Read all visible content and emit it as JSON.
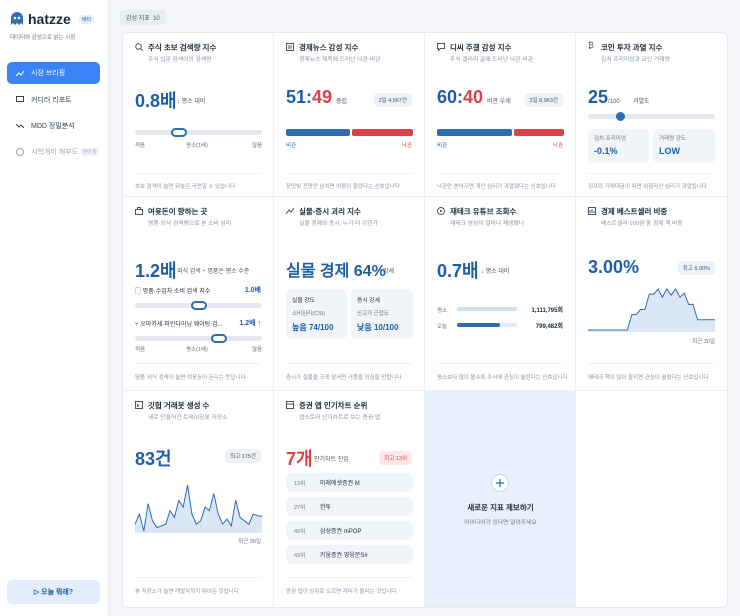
{
  "sidebar": {
    "logo": "hatzze",
    "badge": "베타",
    "tagline": "데이터와 감성으로 읽는 시장",
    "nav": [
      {
        "label": "시장 브리핑"
      },
      {
        "label": "커디러 리포트"
      },
      {
        "label": "MDD 정밀분석"
      },
      {
        "label": "서학개미 해부도",
        "badge": "준비 중"
      }
    ],
    "cta": "오늘 뭐래?"
  },
  "header": {
    "title": "감성 지표",
    "count": 10
  },
  "cards": [
    {
      "title": "주식 초보 검색량 지수",
      "subtitle": "주식 입문 검색어의 검색량",
      "value": "0.8배",
      "change": "↓ 평소 대비",
      "scale": [
        "적음",
        "평소(1배)",
        "많음"
      ],
      "footer": "초보 검색이 늘면 뒤늦은 국면일 수 있습니다"
    },
    {
      "title": "경제뉴스 감성 지수",
      "subtitle": "경제뉴스 제목에 드러난 낙관·비관",
      "ratio": {
        "left": 51,
        "sep": ":",
        "right": 49
      },
      "verdict": "중립",
      "count": "3일 4,567건",
      "bar_labels": [
        "비관",
        "낙관"
      ],
      "footer": "장밋빛 전망만 넘치면 여론이 들떴다는 신호입니다"
    },
    {
      "title": "디씨 주갤 감성 지수",
      "subtitle": "주식 갤러리 글에 드러난 낙관·비관",
      "ratio": {
        "left": 60,
        "sep": ":",
        "right": 40
      },
      "verdict": "비관 우세",
      "count": "3일 8,963건",
      "bar_labels": [
        "비관",
        "낙관"
      ],
      "footer": "낙관만 쏟아지면 개인 심리가 과열됐다는 신호입니다"
    },
    {
      "title": "코인 투자 과열 지수",
      "subtitle": "김치 프리미엄과 코인 거래량",
      "score": 25,
      "scale": "/100",
      "label": "과열도",
      "stats": [
        {
          "label": "김치 프리미엄",
          "value": "-0.1%"
        },
        {
          "label": "거래량 강도",
          "value": "LOW"
        }
      ],
      "footer": "김프와 거래대금이 뛰면 위험자산 심리가 과열됩니다"
    },
    {
      "title": "여윳돈이 향하는 곳",
      "subtitle": "명품·외식 검색량으로 본 소비 심리",
      "value": "1.2배",
      "note": "외식 검색 ÷ 명품은 평소 수준",
      "rows": [
        {
          "label": "명품·수입차 소비 검색 지수",
          "value": "1.0배"
        },
        {
          "label": "오마카세·파인다이닝 웨이팅 검...",
          "value": "1.2배 ↑"
        }
      ],
      "scale": [
        "적음",
        "평소(1배)",
        "많음"
      ],
      "footer": "명품·외식 검색이 늘면 여윳돈이 돈다는 뜻입니다"
    },
    {
      "title": "실물-증시 괴리 지수",
      "subtitle": "실물 경제와 증시, 누가 더 강한가",
      "value": "실물 경제 64%",
      "verdict": "강세",
      "stats": [
        {
          "label": "실물 강도",
          "metric": "소비심리(CSI)",
          "level": "높음",
          "score": "74/100"
        },
        {
          "label": "증시 강세",
          "metric": "신고가 근접도",
          "level": "낮음",
          "score": "10/100"
        }
      ],
      "footer": "증시가 실물을 크게 앞서면 거품을 의심할 만합니다"
    },
    {
      "title": "재테크 유튜브 조회수",
      "subtitle": "재테크 영상이 얼마나 재생됐나",
      "value": "0.7배",
      "change": "↓ 평소 대비",
      "rows": [
        {
          "label": "평소",
          "value": "1,111,795회"
        },
        {
          "label": "오늘",
          "value": "799,482회"
        }
      ],
      "footer": "평소보다 많이 볼수록 주식에 관심이 쏠린다는 신호입니다"
    },
    {
      "title": "경제 베스트셀러 비중",
      "subtitle": "베스트셀러 100권 중 경제 책 비중",
      "value": "3.00%",
      "peak": "최고 6.00%",
      "trend": [
        2,
        2,
        2,
        2,
        2,
        2,
        2,
        2,
        2,
        2,
        3.5,
        3.5,
        4,
        4,
        5.5,
        5.5,
        6,
        5.2,
        6,
        5.4,
        6,
        5.2,
        5.6,
        4.5,
        4.5,
        3,
        3,
        3,
        3,
        3
      ],
      "period": "최근 30일",
      "footer": "재테크 책이 많이 팔리면 관심이 쏠렸다는 신호입니다"
    },
    {
      "title": "깃헙 거래봇 생성 수",
      "subtitle": "새로 만들어진 트레이딩봇 저장소",
      "value": "83건",
      "peak": "최고 175건",
      "trend": [
        60,
        90,
        40,
        120,
        70,
        50,
        55,
        60,
        100,
        80,
        130,
        110,
        175,
        90,
        60,
        70,
        110,
        100,
        150,
        90,
        60,
        75,
        55,
        130,
        80,
        70,
        60,
        90,
        85,
        83
      ],
      "period": "최근 30일",
      "footer": "봇 저장소가 늘면 개발자까지 뛰어든 것입니다"
    },
    {
      "title": "증권 앱 인기차트 순위",
      "subtitle": "앱스토어 인기차트로 보는 증권 앱",
      "value": "7개",
      "label": "인기차트 진입",
      "peak": "최고 13위",
      "apps": [
        {
          "rank": "13위",
          "name": "미래에셋증권 M"
        },
        {
          "rank": "27위",
          "name": "한투"
        },
        {
          "rank": "40위",
          "name": "삼성증권 mPOP"
        },
        {
          "rank": "43위",
          "name": "키움증권 영웅문S#"
        }
      ],
      "footer": "증권 앱이 상위로 오르면 개미가 몰리는 것입니다"
    },
    {
      "title": "새로운 지표 제보하기",
      "subtitle": "아이디어가 있다면 알려주세요"
    }
  ]
}
